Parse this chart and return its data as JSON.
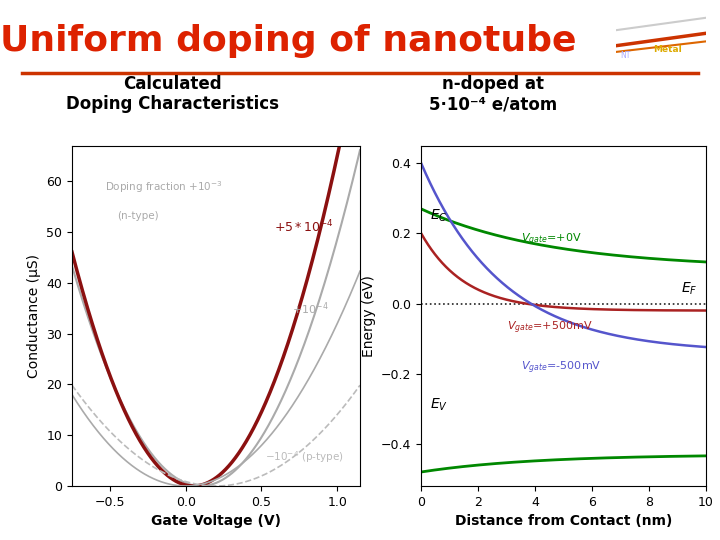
{
  "title": "Uniform doping of nanotube",
  "title_color": "#DD2200",
  "title_fontsize": 26,
  "divider_color": "#CC3300",
  "left_panel_title": "Calculated\nDoping Characteristics",
  "right_panel_title": "n-doped at\n5·10⁻⁴ e/atom",
  "bg_color": "#FFFFFF",
  "left_xlabel": "Gate Voltage (V)",
  "left_ylabel": "Conductance (μS)",
  "left_xlim": [
    -0.75,
    1.15
  ],
  "left_ylim": [
    0,
    67
  ],
  "right_xlabel": "Distance from Contact (nm)",
  "right_ylabel": "Energy (eV)",
  "right_xlim": [
    0,
    10
  ],
  "right_ylim": [
    -0.52,
    0.45
  ],
  "curve_dark_red_color": "#8B1010",
  "curve_gray_solid": "#AAAAAA",
  "curve_gray_dashed": "#BBBBBB",
  "right_green": "#008800",
  "right_red": "#AA2222",
  "right_blue": "#5555CC",
  "right_ef_color": "#222222"
}
